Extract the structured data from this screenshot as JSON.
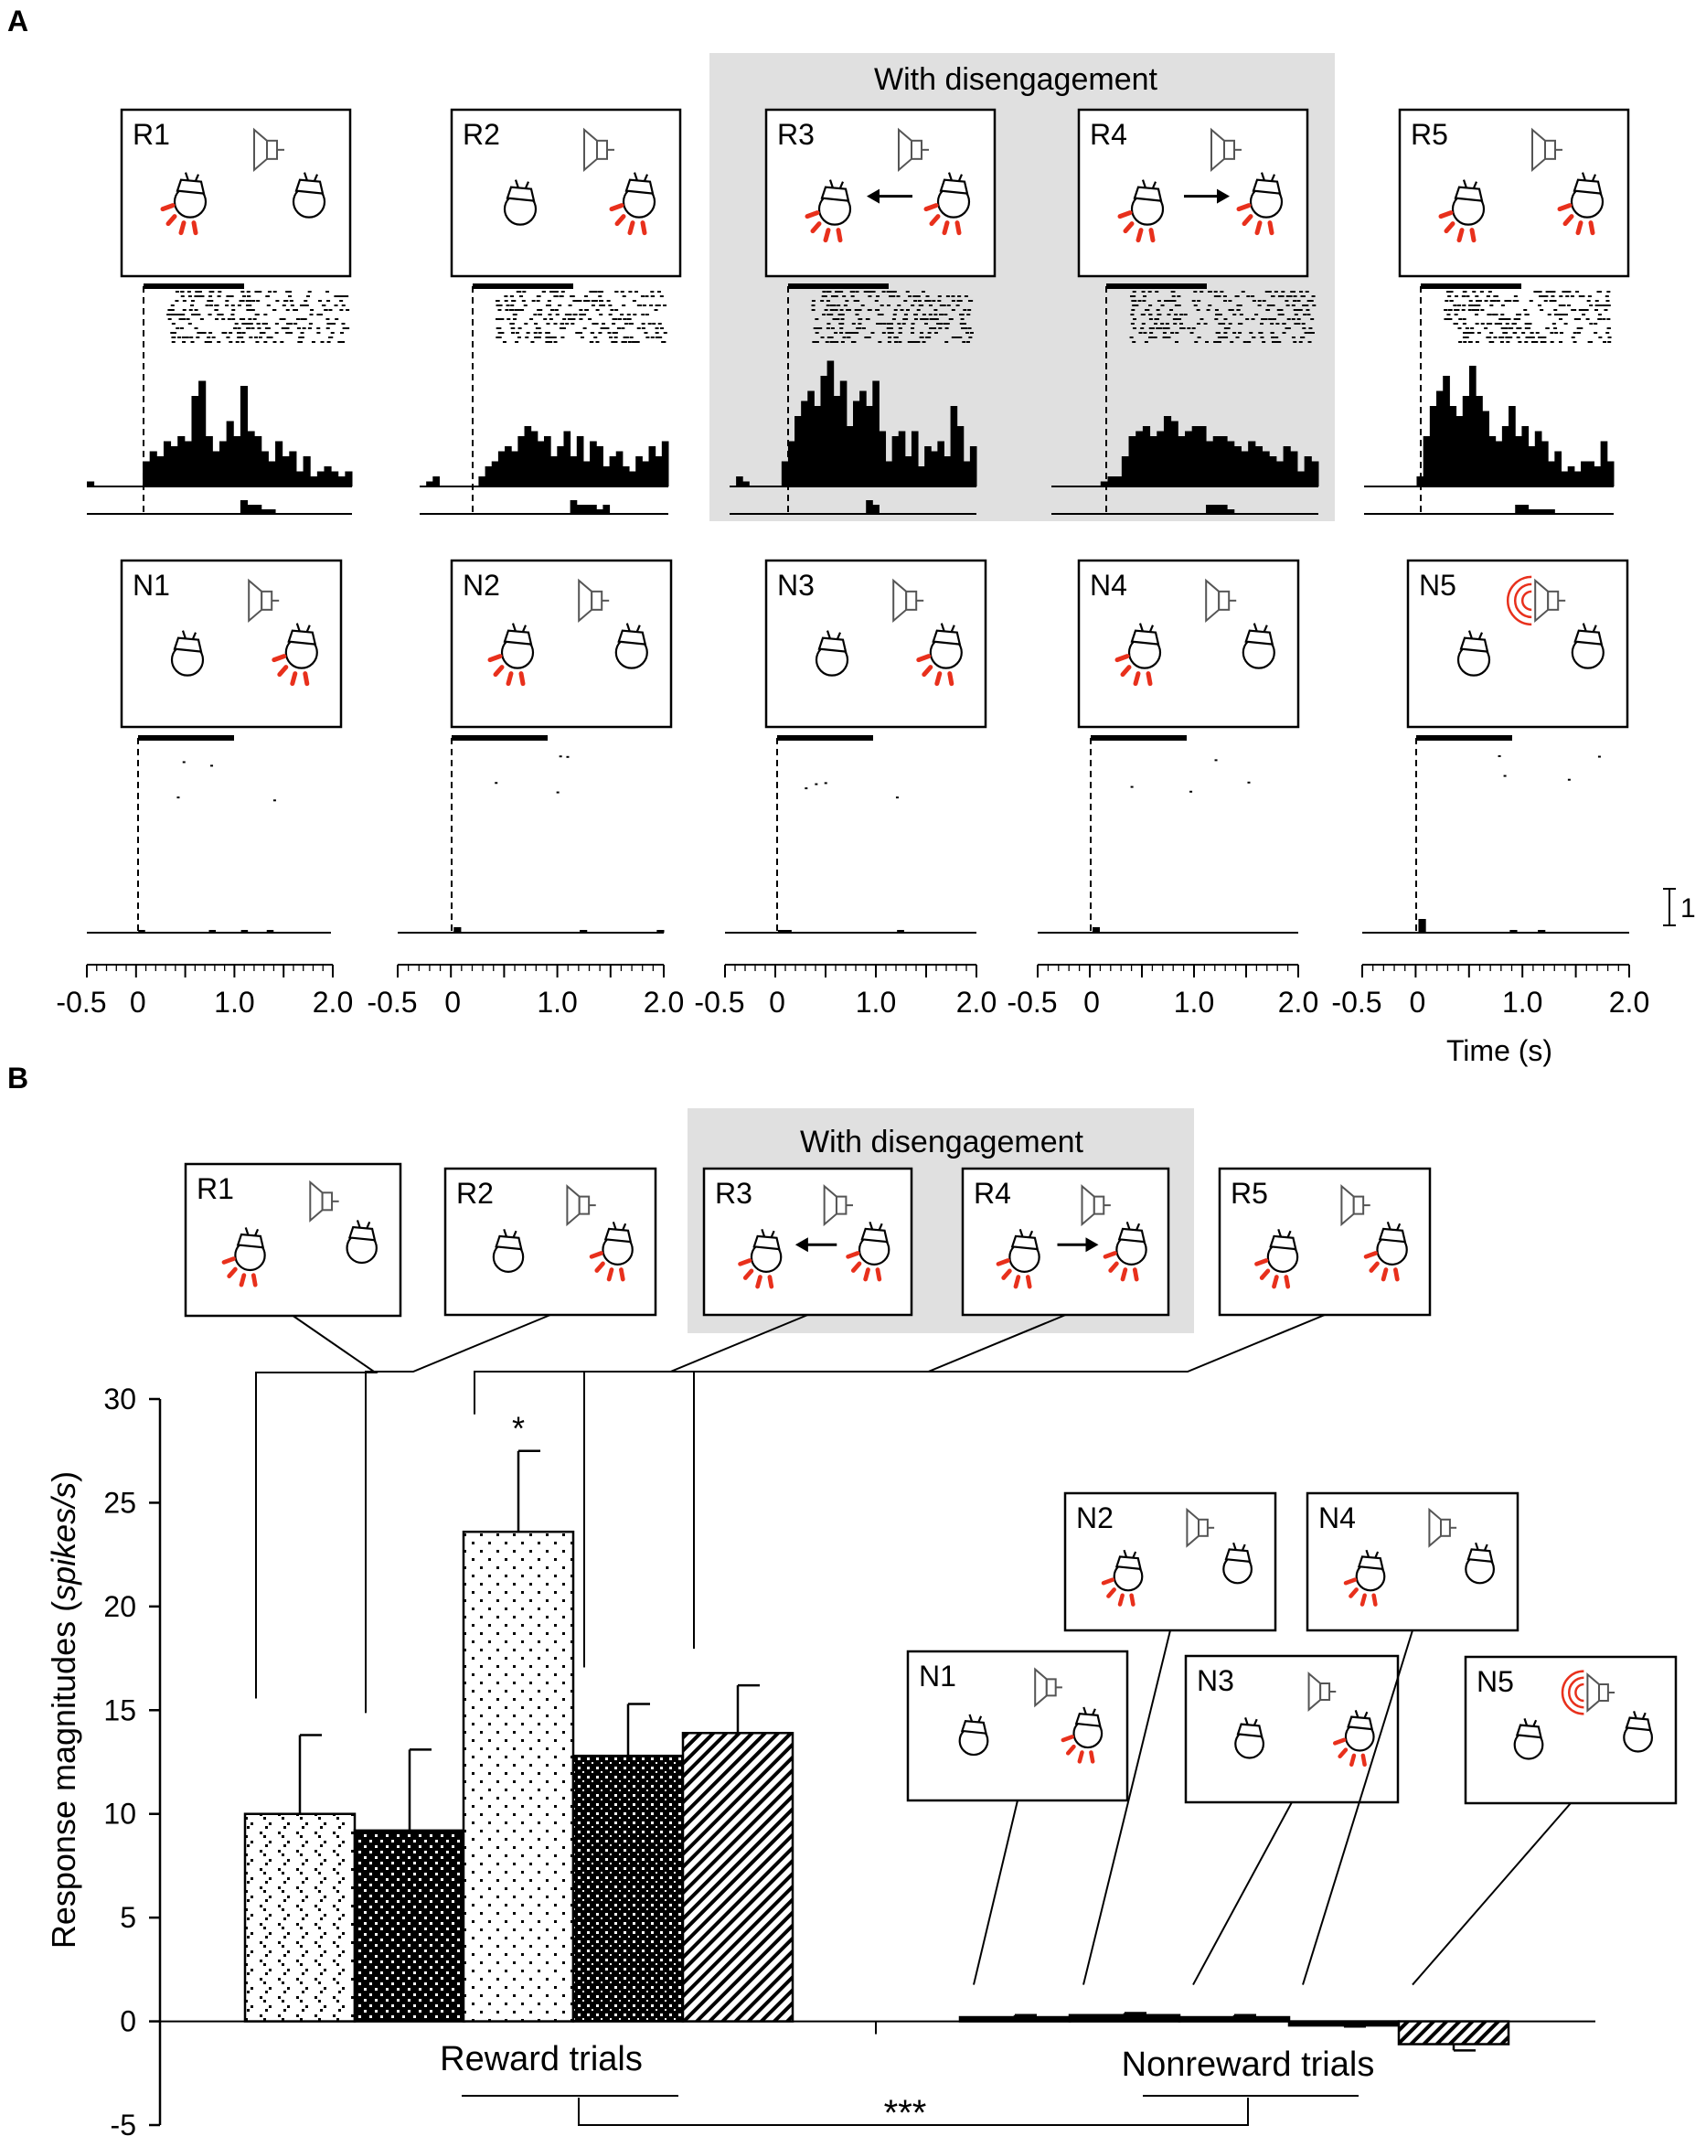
{
  "panel_a": {
    "label": "A",
    "highlight_title": "With disengagement",
    "reward_rows": [
      {
        "id": "R1",
        "reward_mouse": "left",
        "arrow": ""
      },
      {
        "id": "R2",
        "reward_mouse": "right",
        "arrow": ""
      },
      {
        "id": "R3",
        "reward_mouse": "both",
        "arrow": "left"
      },
      {
        "id": "R4",
        "reward_mouse": "both",
        "arrow": "right"
      },
      {
        "id": "R5",
        "reward_mouse": "both",
        "arrow": ""
      }
    ],
    "nonreward_rows": [
      {
        "id": "N1",
        "reward_mouse": "right",
        "sound": false
      },
      {
        "id": "N2",
        "reward_mouse": "left",
        "sound": false
      },
      {
        "id": "N3",
        "reward_mouse": "right",
        "sound": false
      },
      {
        "id": "N4",
        "reward_mouse": "left",
        "sound": false
      },
      {
        "id": "N5",
        "reward_mouse": "none",
        "sound": true
      }
    ],
    "reward_psth": [
      [
        1,
        0,
        0,
        0,
        0,
        0,
        0,
        0,
        5,
        7,
        6,
        9,
        8,
        10,
        9,
        18,
        21,
        10,
        7,
        9,
        13,
        10,
        20,
        11,
        10,
        7,
        5,
        9,
        6,
        7,
        3,
        6,
        2,
        3,
        4,
        3,
        2,
        3
      ],
      [
        0,
        1,
        2,
        0,
        0,
        0,
        0,
        0,
        0,
        2,
        4,
        5,
        7,
        8,
        7,
        10,
        12,
        11,
        9,
        10,
        6,
        8,
        11,
        6,
        10,
        5,
        9,
        8,
        4,
        6,
        7,
        4,
        3,
        6,
        5,
        8,
        6,
        9
      ],
      [
        0,
        2,
        1,
        0,
        0,
        0,
        0,
        0,
        5,
        9,
        14,
        17,
        19,
        16,
        22,
        25,
        18,
        21,
        12,
        17,
        19,
        16,
        21,
        11,
        5,
        10,
        11,
        6,
        11,
        4,
        8,
        7,
        9,
        6,
        16,
        12,
        5,
        8
      ],
      [
        0,
        0,
        0,
        0,
        0,
        0,
        0,
        1,
        2,
        2,
        6,
        10,
        11,
        12,
        10,
        11,
        14,
        13,
        10,
        11,
        12,
        12,
        9,
        10,
        10,
        9,
        8,
        7,
        9,
        8,
        7,
        6,
        5,
        8,
        7,
        3,
        6,
        5
      ],
      [
        0,
        0,
        0,
        0,
        0,
        0,
        0,
        0,
        2,
        10,
        16,
        19,
        22,
        16,
        14,
        18,
        24,
        18,
        15,
        10,
        9,
        12,
        16,
        10,
        12,
        8,
        11,
        9,
        5,
        7,
        3,
        4,
        3,
        5,
        5,
        4,
        9,
        5
      ]
    ],
    "reward_lower_bars": [
      [
        0,
        0,
        0,
        0,
        0,
        0,
        0,
        0,
        0,
        0,
        0,
        0,
        0,
        0,
        0,
        0,
        0,
        0,
        0,
        0,
        0,
        0,
        3,
        2,
        2,
        1,
        1,
        0,
        0,
        0,
        0,
        0,
        0,
        0,
        0,
        0,
        0,
        0
      ],
      [
        0,
        0,
        0,
        0,
        0,
        0,
        0,
        0,
        0,
        0,
        0,
        0,
        0,
        0,
        0,
        0,
        0,
        0,
        0,
        0,
        0,
        0,
        0,
        3,
        2,
        2,
        2,
        1,
        2,
        0,
        0,
        0,
        0,
        0,
        0,
        0,
        0,
        0
      ],
      [
        0,
        0,
        0,
        0,
        0,
        0,
        0,
        0,
        0,
        0,
        0,
        0,
        0,
        0,
        0,
        0,
        0,
        0,
        0,
        0,
        0,
        3,
        2,
        0,
        0,
        0,
        0,
        0,
        0,
        0,
        0,
        0,
        0,
        0,
        0,
        0,
        0,
        0
      ],
      [
        0,
        0,
        0,
        0,
        0,
        0,
        0,
        0,
        0,
        0,
        0,
        0,
        0,
        0,
        0,
        0,
        0,
        0,
        0,
        0,
        0,
        0,
        2,
        2,
        2,
        1,
        0,
        0,
        0,
        0,
        0,
        0,
        0,
        0,
        0,
        0,
        0,
        0
      ],
      [
        0,
        0,
        0,
        0,
        0,
        0,
        0,
        0,
        0,
        0,
        0,
        0,
        0,
        0,
        0,
        0,
        0,
        0,
        0,
        0,
        0,
        0,
        0,
        2,
        2,
        1,
        1,
        1,
        1,
        0,
        0,
        0,
        0,
        0,
        0,
        0,
        0,
        0
      ]
    ],
    "nonreward_psth": [
      [
        0,
        0,
        0,
        0,
        0,
        0,
        0,
        0,
        1,
        0,
        0,
        0,
        0,
        0,
        0,
        0,
        0,
        0,
        0,
        1,
        0,
        0,
        0,
        0,
        1,
        0,
        0,
        0,
        1,
        0,
        0,
        0,
        0,
        0,
        0,
        0,
        0,
        0
      ],
      [
        0,
        0,
        0,
        0,
        0,
        0,
        0,
        0,
        2,
        0,
        0,
        0,
        0,
        0,
        0,
        0,
        0,
        0,
        0,
        0,
        0,
        0,
        0,
        0,
        0,
        0,
        1,
        0,
        0,
        0,
        0,
        0,
        0,
        0,
        0,
        0,
        0,
        1
      ],
      [
        0,
        0,
        0,
        0,
        0,
        0,
        0,
        0,
        1,
        1,
        0,
        0,
        0,
        0,
        0,
        0,
        0,
        0,
        0,
        0,
        0,
        0,
        0,
        0,
        0,
        0,
        1,
        0,
        0,
        0,
        0,
        0,
        0,
        0,
        0,
        0,
        0,
        0
      ],
      [
        0,
        0,
        0,
        0,
        0,
        0,
        0,
        0,
        2,
        0,
        0,
        0,
        0,
        0,
        0,
        0,
        0,
        0,
        0,
        0,
        0,
        0,
        0,
        0,
        0,
        0,
        0,
        0,
        0,
        0,
        0,
        0,
        0,
        0,
        0,
        0,
        0,
        0
      ],
      [
        0,
        0,
        0,
        0,
        0,
        0,
        0,
        0,
        5,
        0,
        0,
        0,
        0,
        0,
        0,
        0,
        0,
        0,
        0,
        0,
        0,
        1,
        0,
        0,
        0,
        1,
        0,
        0,
        0,
        0,
        0,
        0,
        0,
        0,
        0,
        0,
        0,
        0
      ]
    ],
    "time_axis": {
      "xlim": [
        -0.5,
        2.0
      ],
      "tick_labels": [
        "-0.5",
        "0",
        "1.0",
        "2.0"
      ],
      "xlabel": "Time (s)"
    },
    "scale_bar_label": "1"
  },
  "panel_b": {
    "label": "B",
    "highlight_title": "With disengagement",
    "chart_data": {
      "type": "bar",
      "ylabel_prefix": "Response magnitudes (",
      "ylabel_unit": "spikes/s",
      "ylabel_suffix": ")",
      "ylim": [
        -5,
        30
      ],
      "yticks": [
        -5,
        0,
        5,
        10,
        15,
        20,
        25,
        30
      ],
      "groups": [
        {
          "name": "Reward trials",
          "categories": [
            "R1",
            "R2",
            "R3",
            "R4",
            "R5"
          ],
          "values": [
            10.0,
            9.2,
            23.6,
            12.8,
            13.9
          ],
          "errors": [
            3.8,
            3.9,
            3.9,
            2.5,
            2.3
          ]
        },
        {
          "name": "Nonreward trials",
          "categories": [
            "N1",
            "N2",
            "N3",
            "N4",
            "N5"
          ],
          "values": [
            0.2,
            0.3,
            0.2,
            -0.2,
            -1.1
          ],
          "errors": [
            0.1,
            0.1,
            0.1,
            0.05,
            0.3
          ]
        }
      ],
      "annotations": [
        {
          "target": "R3",
          "text": "*"
        },
        {
          "target": "Reward trials vs Nonreward trials",
          "text": "***"
        }
      ]
    }
  }
}
